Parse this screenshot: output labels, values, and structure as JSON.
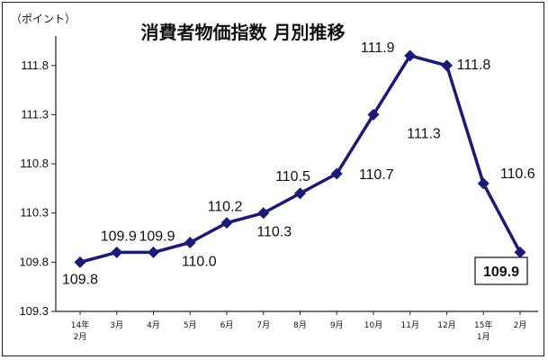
{
  "chart_data": {
    "type": "line",
    "title": "消費者物価指数 月別推移",
    "unit_label": "（ポイント）",
    "categories": [
      [
        "14年",
        "2月"
      ],
      [
        "3月"
      ],
      [
        "4月"
      ],
      [
        "5月"
      ],
      [
        "6月"
      ],
      [
        "7月"
      ],
      [
        "8月"
      ],
      [
        "9月"
      ],
      [
        "10月"
      ],
      [
        "11月"
      ],
      [
        "12月"
      ],
      [
        "15年",
        "1月"
      ],
      [
        "2月"
      ]
    ],
    "values": [
      109.8,
      109.9,
      109.9,
      110.0,
      110.2,
      110.3,
      110.5,
      110.7,
      111.3,
      111.9,
      111.8,
      110.6,
      109.9
    ],
    "data_labels": [
      "109.8",
      "109.9",
      "109.9",
      "110.0",
      "110.2",
      "110.3",
      "110.5",
      "110.7",
      "111.3",
      "111.9",
      "111.8",
      "110.6",
      "109.9"
    ],
    "y_ticks": [
      "109.3",
      "109.8",
      "110.3",
      "110.8",
      "111.3",
      "111.8"
    ],
    "ylim": [
      109.3,
      112.1
    ],
    "line_color": "#1a1a7a",
    "grid": false,
    "legend": "none",
    "highlight_last": true
  }
}
